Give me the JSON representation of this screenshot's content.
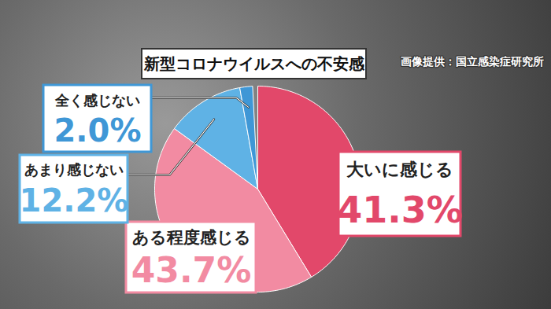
{
  "chart_data": {
    "type": "pie",
    "title": "新型コロナウイルスへの不安感",
    "annotations": [
      "画像提供：国立感染症研究所"
    ],
    "categories": [
      "大いに感じる",
      "ある程度感じる",
      "あまり感じない",
      "全く感じない"
    ],
    "values": [
      41.3,
      43.7,
      12.2,
      2.0
    ],
    "value_labels": [
      "41.3%",
      "43.7%",
      "12.2%",
      "2.0%"
    ],
    "colors": [
      "#e2486a",
      "#f28ba2",
      "#5fb2e5",
      "#3f97d6"
    ],
    "data_labels": true
  }
}
